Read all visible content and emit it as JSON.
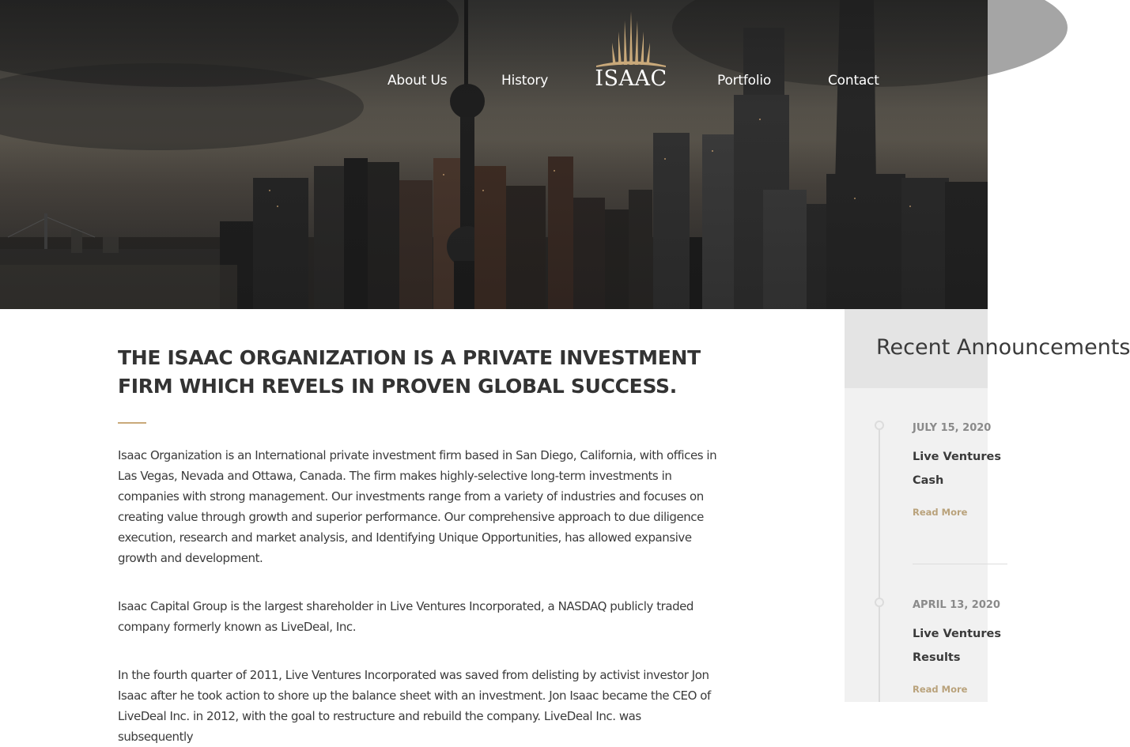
{
  "nav": {
    "about": "About Us",
    "history": "History",
    "logo_text": "ISAAC",
    "portfolio": "Portfolio",
    "contact": "Contact"
  },
  "main": {
    "headline": "THE ISAAC ORGANIZATION IS A PRIVATE INVESTMENT FIRM WHICH REVELS IN PROVEN GLOBAL SUCCESS.",
    "paragraphs": [
      "Isaac Organization is an International private investment firm based in San Diego, California, with offices in Las Vegas, Nevada and Ottawa, Canada. The firm makes highly-selective long-term investments in companies with strong management. Our investments range from a variety of industries and focuses on creating value through growth and superior performance. Our comprehensive approach to due diligence execution, research and market analysis, and Identifying Unique Opportunities, has allowed expansive growth and development.",
      "Isaac Capital Group is the largest shareholder in Live Ventures Incorporated, a NASDAQ publicly traded company formerly known as LiveDeal, Inc.",
      "In the fourth quarter of 2011, Live Ventures Incorporated was saved from delisting by activist investor Jon Isaac after he took action to shore up the balance sheet with an investment. Jon Isaac became the CEO of LiveDeal Inc. in 2012, with the goal to restructure and rebuild the company. LiveDeal Inc. was subsequently"
    ]
  },
  "sidebar": {
    "title": "Recent Announcements",
    "items": [
      {
        "date": "JULY 15, 2020",
        "title": "Live Ventures\nCash",
        "read_more": "Read More"
      },
      {
        "date": "APRIL 13, 2020",
        "title": "Live Ventures\nResults",
        "read_more": "Read More"
      }
    ]
  },
  "colors": {
    "accent_gold": "#c9a97a",
    "read_more": "#b9a27b",
    "text": "#3b3b3b"
  }
}
